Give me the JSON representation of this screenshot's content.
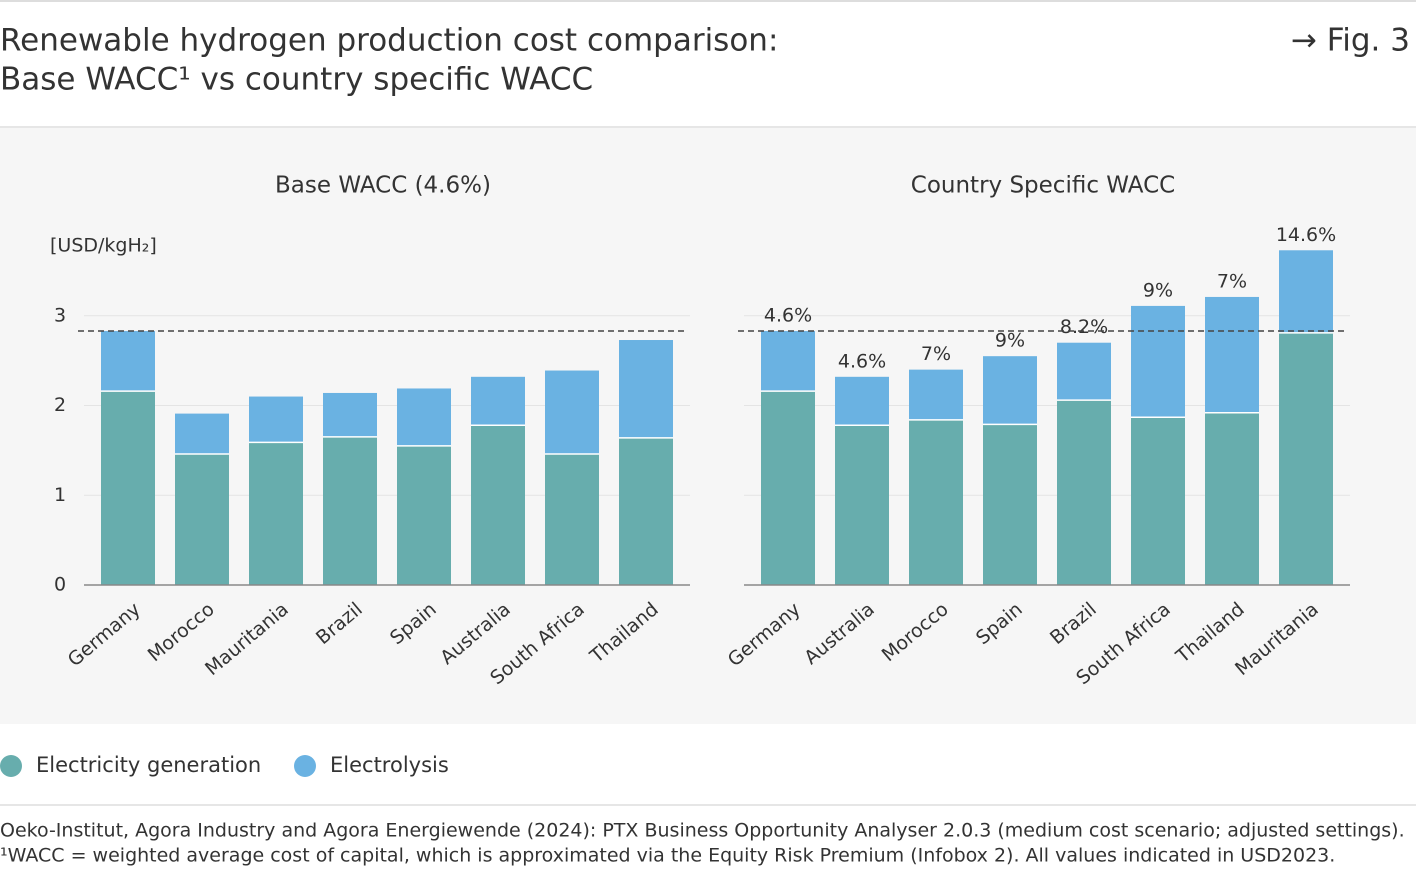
{
  "header": {
    "title_line1": "Renewable hydrogen production cost comparison:",
    "title_line2": "Base WACC¹ vs country specific WACC",
    "figure": "→ Fig. 3"
  },
  "legend": [
    {
      "name": "Electricity generation",
      "color": "#67adad"
    },
    {
      "name": "Electrolysis",
      "color": "#6ab2e2"
    }
  ],
  "chart_data": [
    {
      "type": "stacked_bar",
      "title": "Base WACC (4.6%)",
      "y_unit": "[USD/kgH₂]",
      "categories": [
        "Germany",
        "Morocco",
        "Mauritania",
        "Brazil",
        "Spain",
        "Australia",
        "South Africa",
        "Thailand"
      ],
      "series": [
        {
          "values": [
            2.16,
            1.46,
            1.59,
            1.65,
            1.55,
            1.78,
            1.46,
            1.64
          ]
        },
        {
          "values": [
            0.67,
            0.45,
            0.51,
            0.49,
            0.64,
            0.54,
            0.93,
            1.09
          ]
        }
      ],
      "reference_line": 2.83,
      "ylim": [
        0,
        3.8
      ],
      "yticks": [
        0,
        1,
        2,
        3
      ],
      "grid": true,
      "show_tick_labels": true
    },
    {
      "type": "stacked_bar",
      "title": "Country Specific WACC",
      "categories": [
        "Germany",
        "Australia",
        "Morocco",
        "Spain",
        "Brazil",
        "South Africa",
        "Thailand",
        "Mauritania"
      ],
      "series": [
        {
          "values": [
            2.16,
            1.78,
            1.84,
            1.79,
            2.06,
            1.87,
            1.92,
            2.81
          ]
        },
        {
          "values": [
            0.67,
            0.54,
            0.56,
            0.76,
            0.64,
            1.24,
            1.29,
            0.92
          ]
        }
      ],
      "wacc_labels": [
        "4.6%",
        "4.6%",
        "7%",
        "9%",
        "8.2%",
        "9%",
        "7%",
        "14.6%"
      ],
      "reference_line": 2.83,
      "ylim": [
        0,
        3.8
      ],
      "yticks": [
        0,
        1,
        2,
        3
      ],
      "grid": true,
      "show_tick_labels": false
    }
  ],
  "footer": {
    "source": "Oeko-Institut, Agora Industry and Agora Energiewende (2024): PTX Business Opportunity Analyser 2.0.3 (medium cost scenario; adjusted settings).",
    "note": "¹WACC = weighted average cost of capital, which is approximated via the Equity Risk Premium (Infobox 2). All values indicated in USD2023."
  }
}
